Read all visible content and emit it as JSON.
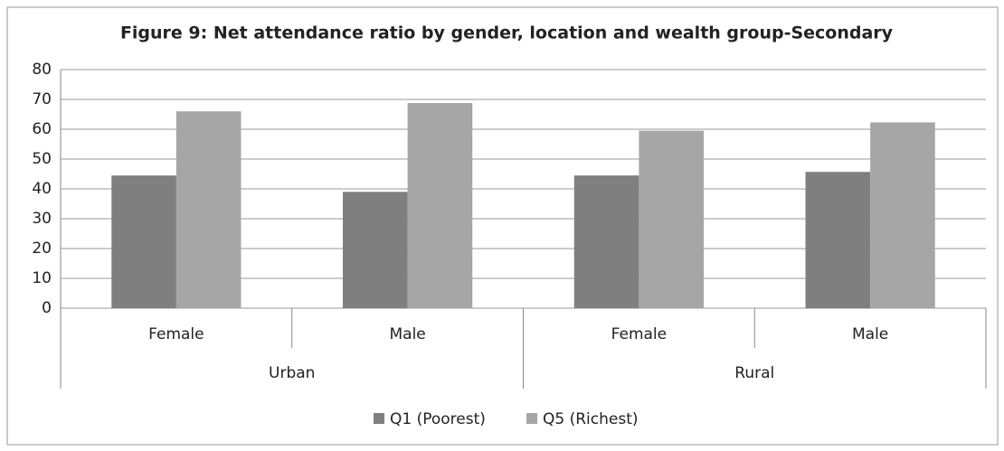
{
  "chart_data": {
    "type": "bar",
    "title": "Figure 9: Net attendance ratio by gender, location and wealth group-Secondary",
    "categories": [
      "Female",
      "Male",
      "Female",
      "Male"
    ],
    "groups": [
      "Urban",
      "Rural"
    ],
    "series": [
      {
        "name": "Q1 (Poorest)",
        "color": "#7f7f7f",
        "values": [
          44.5,
          39,
          44.5,
          45.7
        ]
      },
      {
        "name": "Q5 (Richest)",
        "color": "#a6a6a6",
        "values": [
          66,
          68.8,
          59.5,
          62.3
        ]
      }
    ],
    "ylim": [
      0,
      80
    ],
    "yticks": [
      0,
      10,
      20,
      30,
      40,
      50,
      60,
      70,
      80
    ],
    "grid": true,
    "legend": "bottom"
  }
}
